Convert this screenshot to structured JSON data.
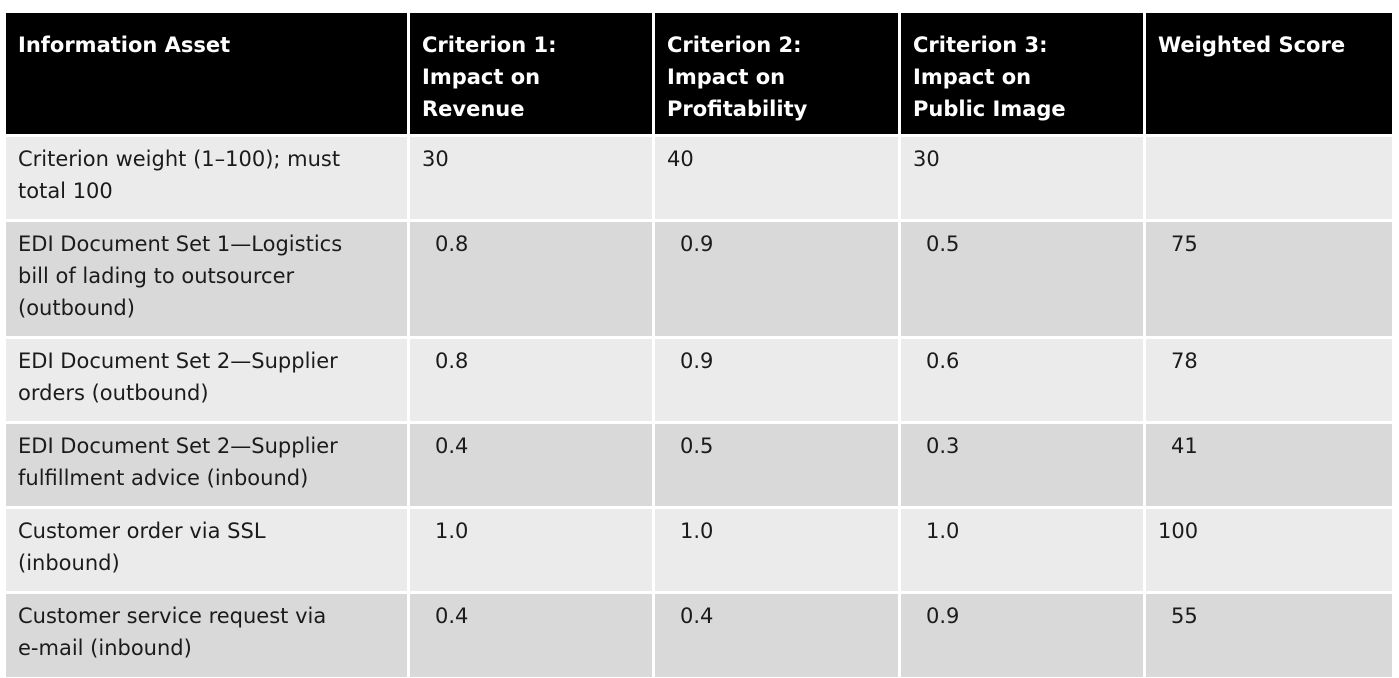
{
  "table": {
    "headers": [
      "Information Asset",
      "Criterion 1: Impact on Revenue",
      "Criterion 2: Impact on Profitability",
      "Criterion 3: Impact on Public Image",
      "Weighted Score"
    ],
    "header_lines": [
      [
        "Information Asset"
      ],
      [
        "Criterion 1:",
        "Impact on",
        "Revenue"
      ],
      [
        "Criterion 2:",
        "Impact on",
        "Profitability"
      ],
      [
        "Criterion 3:",
        "Impact on",
        "Public Image"
      ],
      [
        "Weighted Score"
      ]
    ],
    "rows": [
      [
        "Criterion weight (1–100); must total 100",
        "30",
        "40",
        "30",
        ""
      ],
      [
        "EDI Document Set 1—Logistics bill of lading to outsourcer (outbound)",
        "0.8",
        "0.9",
        "0.5",
        "75"
      ],
      [
        "EDI Document Set 2—Supplier orders (outbound)",
        "0.8",
        "0.9",
        "0.6",
        "78"
      ],
      [
        "EDI Document Set 2—Supplier fulfillment advice (inbound)",
        "0.4",
        "0.5",
        "0.3",
        "41"
      ],
      [
        "Customer order via SSL (inbound)",
        "1.0",
        "1.0",
        "1.0",
        "100"
      ],
      [
        "Customer service request via e-mail (inbound)",
        "0.4",
        "0.4",
        "0.9",
        "55"
      ]
    ],
    "row_first_cell_lines": [
      [
        "Criterion weight (1–100); must",
        "total 100"
      ],
      [
        "EDI Document Set 1—Logistics",
        "bill of lading to outsourcer",
        "(outbound)"
      ],
      [
        "EDI Document Set 2—Supplier",
        "orders (outbound)"
      ],
      [
        "EDI Document Set 2—Supplier",
        "fulfillment advice (inbound)"
      ],
      [
        "Customer order via SSL",
        "(inbound)"
      ],
      [
        "Customer service request via",
        "e-mail (inbound)"
      ]
    ],
    "colors": {
      "header_bg": "#000000",
      "header_text": "#ffffff",
      "row_light": "#ebebeb",
      "row_dark": "#d9d9d9"
    }
  }
}
